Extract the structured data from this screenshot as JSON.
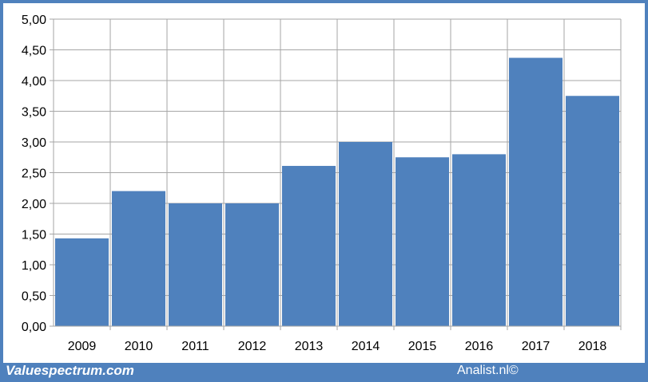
{
  "chart_data": {
    "type": "bar",
    "categories": [
      "2009",
      "2010",
      "2011",
      "2012",
      "2013",
      "2014",
      "2015",
      "2016",
      "2017",
      "2018"
    ],
    "values": [
      1.43,
      2.2,
      2.0,
      2.0,
      2.61,
      3.0,
      2.75,
      2.8,
      4.37,
      3.75
    ],
    "y_ticks": [
      "0,00",
      "0,50",
      "1,00",
      "1,50",
      "2,00",
      "2,50",
      "3,00",
      "3,50",
      "4,00",
      "4,50",
      "5,00"
    ],
    "ylim": [
      0,
      5
    ],
    "title": "",
    "xlabel": "",
    "ylabel": "",
    "grid": true,
    "legend": "none"
  },
  "footer": {
    "brand": "Valuespectrum.com",
    "credit": "Analist.nl©"
  },
  "colors": {
    "bar": "#4f81bd",
    "frame": "#4f81bd",
    "grid": "#a6a6a6",
    "text": "#000000"
  }
}
